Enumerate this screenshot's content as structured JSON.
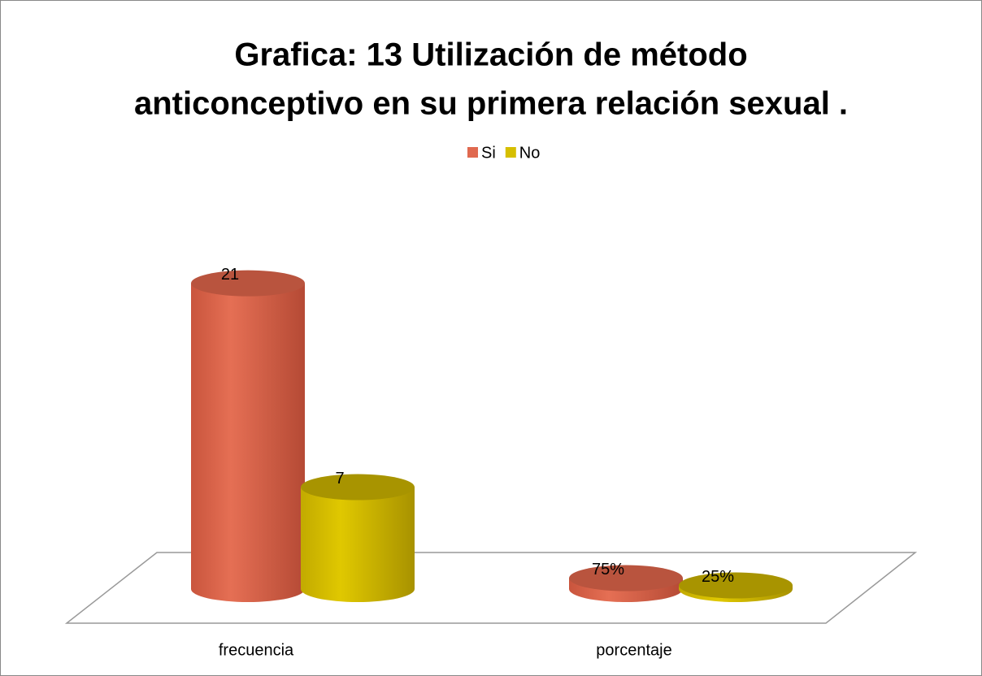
{
  "chart_data": {
    "type": "bar3d",
    "title": [
      "Grafica: 13  Utilización de  método",
      "anticonceptivo en su primera relación sexual ."
    ],
    "categories": [
      "frecuencia",
      "porcentaje"
    ],
    "series": [
      {
        "name": "Si",
        "color": "#e0694f",
        "values": [
          21,
          0.75
        ],
        "value_labels": [
          "21",
          "75%"
        ]
      },
      {
        "name": "No",
        "color": "#d6bf00",
        "values": [
          7,
          0.25
        ],
        "value_labels": [
          "7",
          "25%"
        ]
      }
    ],
    "ylim": [
      0,
      25
    ],
    "legend": "top"
  }
}
